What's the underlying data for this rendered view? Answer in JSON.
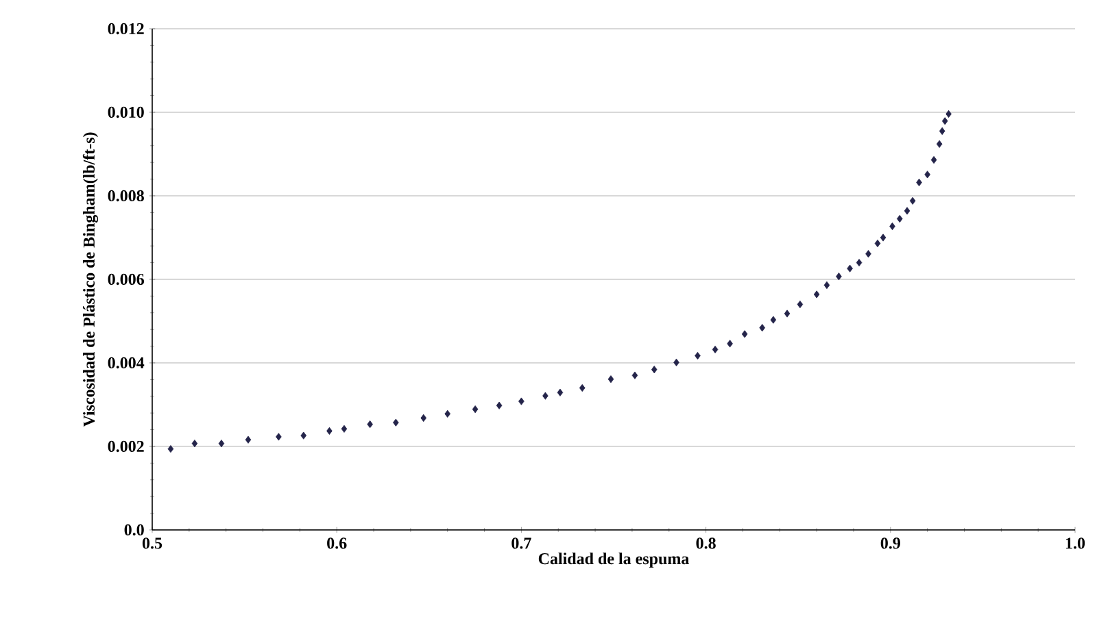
{
  "chart_data": {
    "type": "scatter",
    "xlabel": "Calidad de la espuma",
    "ylabel": "Viscosidad de Plástico de Bingham(lb/ft-s)",
    "xlim": [
      0.5,
      1.0
    ],
    "xticks": [
      0.5,
      0.6,
      0.7,
      0.8,
      0.9,
      {
        "value": 1.0,
        "label": "1.0"
      }
    ],
    "ylim": [
      0,
      0.012
    ],
    "yticks": [
      {
        "value": 0,
        "label": "0.0"
      },
      0.002,
      0.004,
      0.006,
      0.008,
      {
        "value": 0.01,
        "label": "0.010"
      },
      0.012
    ],
    "grid": "y",
    "marker": "diamond",
    "series": [
      {
        "color": "#24244a",
        "x": [
          0.51,
          0.523,
          0.5375,
          0.552,
          0.5685,
          0.582,
          0.596,
          0.604,
          0.618,
          0.632,
          0.647,
          0.66,
          0.675,
          0.688,
          0.7,
          0.713,
          0.721,
          0.733,
          0.7485,
          0.7615,
          0.772,
          0.784,
          0.7955,
          0.805,
          0.813,
          0.821,
          0.8305,
          0.8365,
          0.844,
          0.851,
          0.86,
          0.8655,
          0.872,
          0.878,
          0.883,
          0.888,
          0.893,
          0.896,
          0.901,
          0.905,
          0.909,
          0.912,
          0.9155,
          0.92,
          0.9235,
          0.9265,
          0.928,
          0.9295,
          0.9315
        ],
        "values": [
          0.00194,
          0.00207,
          0.00207,
          0.00216,
          0.00223,
          0.00226,
          0.00237,
          0.00242,
          0.00253,
          0.00257,
          0.00268,
          0.00278,
          0.00289,
          0.00298,
          0.00308,
          0.00321,
          0.00329,
          0.0034,
          0.00361,
          0.0037,
          0.00384,
          0.00401,
          0.00417,
          0.00432,
          0.00446,
          0.00469,
          0.00484,
          0.00503,
          0.00518,
          0.0054,
          0.00564,
          0.00586,
          0.00607,
          0.00626,
          0.0064,
          0.00661,
          0.00686,
          0.007,
          0.00727,
          0.00745,
          0.00764,
          0.00788,
          0.00832,
          0.00851,
          0.00886,
          0.00924,
          0.00955,
          0.00979,
          0.00996
        ]
      }
    ]
  }
}
